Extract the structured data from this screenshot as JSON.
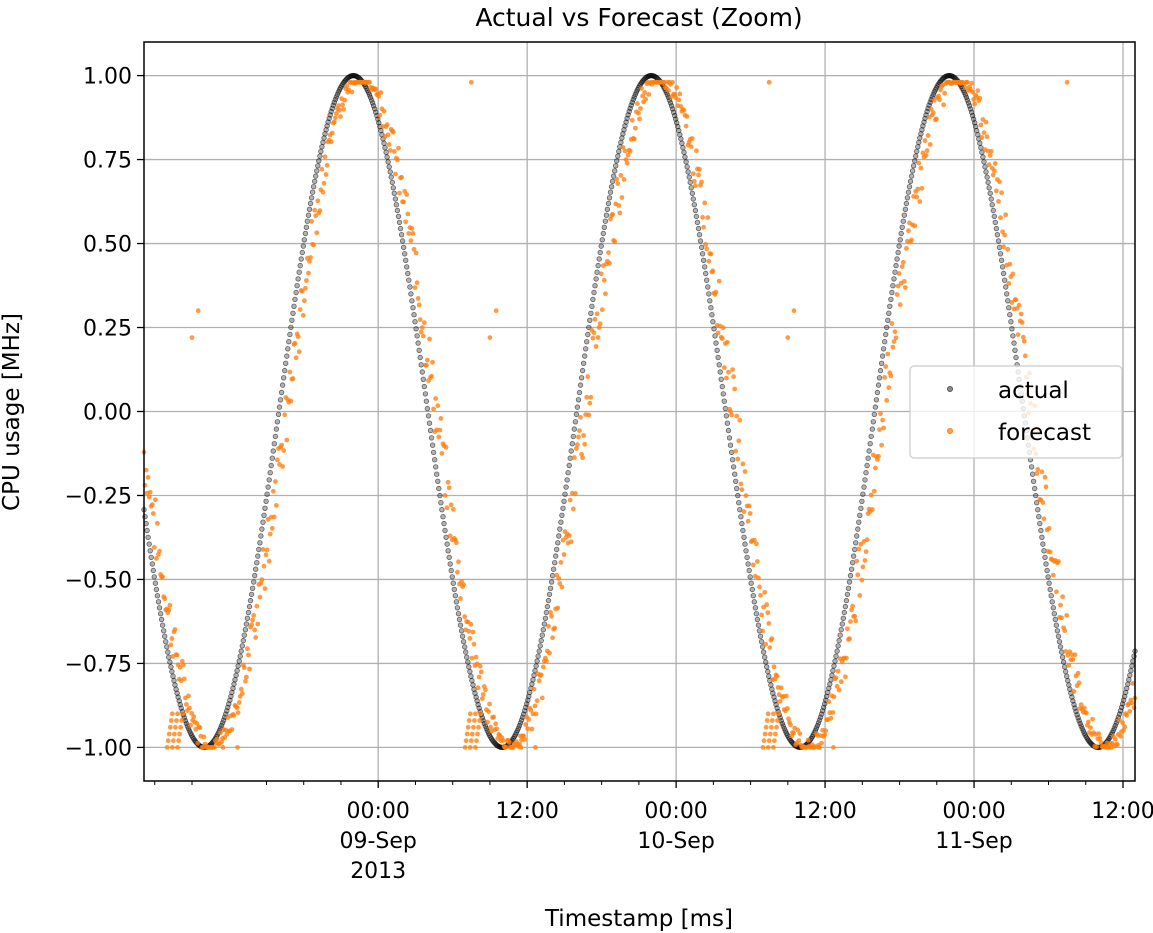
{
  "chart_data": {
    "type": "scatter",
    "title": "Actual vs Forecast (Zoom)",
    "xlabel": "Timestamp [ms]",
    "ylabel": "CPU usage [MHz]",
    "x_type": "datetime",
    "xlim": [
      "2013-09-08T05:08",
      "2013-09-11T12:58"
    ],
    "ylim": [
      -1.1,
      1.1
    ],
    "grid": true,
    "legend_position": "center-right",
    "colors": {
      "actual": "#000000",
      "forecast": "#ff7f0e"
    },
    "yticks": [
      {
        "value": -1.0,
        "label": "−1.00"
      },
      {
        "value": -0.75,
        "label": "−0.75"
      },
      {
        "value": -0.5,
        "label": "−0.50"
      },
      {
        "value": -0.25,
        "label": "−0.25"
      },
      {
        "value": 0.0,
        "label": "0.00"
      },
      {
        "value": 0.25,
        "label": "0.25"
      },
      {
        "value": 0.5,
        "label": "0.50"
      },
      {
        "value": 0.75,
        "label": "0.75"
      },
      {
        "value": 1.0,
        "label": "1.00"
      }
    ],
    "xticks": [
      {
        "value": "2013-09-09T00:00",
        "label": [
          "00:00",
          "09-Sep",
          "2013"
        ]
      },
      {
        "value": "2013-09-09T12:00",
        "label": [
          "12:00"
        ]
      },
      {
        "value": "2013-09-10T00:00",
        "label": [
          "00:00",
          "10-Sep"
        ]
      },
      {
        "value": "2013-09-10T12:00",
        "label": [
          "12:00"
        ]
      },
      {
        "value": "2013-09-11T00:00",
        "label": [
          "00:00",
          "11-Sep"
        ]
      },
      {
        "value": "2013-09-11T12:00",
        "label": [
          "12:00"
        ]
      }
    ],
    "series": [
      {
        "name": "actual",
        "kind": "sinusoid",
        "sample_interval_minutes": 5,
        "period_hours": 24,
        "peak_times": [
          "2013-09-08T22:00",
          "2013-09-09T22:00",
          "2013-09-10T22:00"
        ],
        "trough_times": [
          "2013-09-09T10:00",
          "2013-09-10T10:00",
          "2013-09-11T10:00"
        ],
        "amplitude": 1.0
      },
      {
        "name": "forecast",
        "kind": "sinusoid_clipped",
        "sample_interval_minutes": 5,
        "follows": "actual",
        "clip_range": [
          -1.0,
          0.98
        ],
        "outliers": [
          {
            "x": "2013-09-09T07:30",
            "y": 0.98
          },
          {
            "x": "2013-09-10T07:30",
            "y": 0.98
          },
          {
            "x": "2013-09-11T07:30",
            "y": 0.98
          },
          {
            "x": "2013-09-08T09:30",
            "y": 0.3
          },
          {
            "x": "2013-09-08T09:00",
            "y": 0.22
          },
          {
            "x": "2013-09-09T09:30",
            "y": 0.3
          },
          {
            "x": "2013-09-09T09:00",
            "y": 0.22
          },
          {
            "x": "2013-09-10T09:30",
            "y": 0.3
          },
          {
            "x": "2013-09-10T09:00",
            "y": 0.22
          },
          {
            "x": "2013-09-08T11:30",
            "y": -1.0
          },
          {
            "x": "2013-09-08T12:40",
            "y": -1.0
          },
          {
            "x": "2013-09-09T11:30",
            "y": -1.0
          },
          {
            "x": "2013-09-09T12:40",
            "y": -1.0
          },
          {
            "x": "2013-09-10T11:30",
            "y": -1.0
          },
          {
            "x": "2013-09-10T12:40",
            "y": -1.0
          }
        ],
        "ramp_clusters": [
          "2013-09-08T07:00",
          "2013-09-09T07:00",
          "2013-09-10T07:00"
        ]
      }
    ]
  }
}
